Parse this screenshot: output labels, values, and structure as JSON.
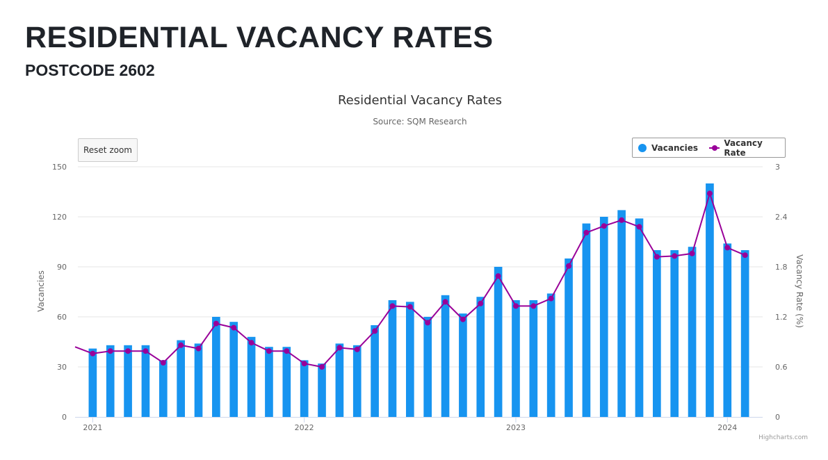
{
  "page": {
    "heading": "RESIDENTIAL VACANCY RATES",
    "subheading": "POSTCODE 2602"
  },
  "reset_zoom_label": "Reset zoom",
  "credits": "Highcharts.com",
  "colors": {
    "bar": "#1794F0",
    "line": "#990099",
    "grid": "#e6e6e6",
    "axis_text": "#666666"
  },
  "chart_data": {
    "type": "bar",
    "title": "Residential Vacancy Rates",
    "subtitle": "Source: SQM Research",
    "x_tick_labels": [
      "2021",
      "2022",
      "2023",
      "2024"
    ],
    "x_tick_dates": [
      "2021-01",
      "2022-01",
      "2023-01",
      "2024-01"
    ],
    "x_start": "2020-12",
    "x_end": "2024-02",
    "months": [
      "2021-01",
      "2021-02",
      "2021-03",
      "2021-04",
      "2021-05",
      "2021-06",
      "2021-07",
      "2021-08",
      "2021-09",
      "2021-10",
      "2021-11",
      "2021-12",
      "2022-01",
      "2022-02",
      "2022-03",
      "2022-04",
      "2022-05",
      "2022-06",
      "2022-07",
      "2022-08",
      "2022-09",
      "2022-10",
      "2022-11",
      "2022-12",
      "2023-01",
      "2023-02",
      "2023-03",
      "2023-04",
      "2023-05",
      "2023-06",
      "2023-07",
      "2023-08",
      "2023-09",
      "2023-10",
      "2023-11",
      "2023-12",
      "2024-01",
      "2024-02"
    ],
    "series": [
      {
        "name": "Vacancies",
        "type": "bar",
        "axis": "left",
        "values": [
          41,
          43,
          43,
          43,
          34,
          46,
          44,
          60,
          57,
          48,
          42,
          42,
          34,
          32,
          44,
          43,
          55,
          70,
          69,
          60,
          73,
          62,
          72,
          90,
          70,
          70,
          74,
          95,
          116,
          120,
          124,
          119,
          100,
          100,
          102,
          140,
          104,
          100
        ]
      },
      {
        "name": "Vacancy Rate",
        "type": "line",
        "axis": "right",
        "start_value": 0.84,
        "values": [
          0.76,
          0.79,
          0.79,
          0.79,
          0.65,
          0.86,
          0.82,
          1.12,
          1.07,
          0.89,
          0.79,
          0.79,
          0.64,
          0.6,
          0.83,
          0.81,
          1.03,
          1.33,
          1.32,
          1.13,
          1.38,
          1.17,
          1.36,
          1.69,
          1.33,
          1.33,
          1.42,
          1.81,
          2.21,
          2.29,
          2.36,
          2.28,
          1.92,
          1.93,
          1.96,
          2.68,
          2.03,
          1.94
        ]
      }
    ],
    "y_left": {
      "label": "Vacancies",
      "min": 0,
      "max": 150,
      "ticks": [
        0,
        30,
        60,
        90,
        120,
        150
      ]
    },
    "y_right": {
      "label": "Vacancy Rate (%)",
      "min": 0,
      "max": 3,
      "ticks": [
        "0",
        "0.6",
        "1.2",
        "1.8",
        "2.4",
        "3"
      ]
    },
    "grid": true,
    "legend_position": "top-right"
  }
}
